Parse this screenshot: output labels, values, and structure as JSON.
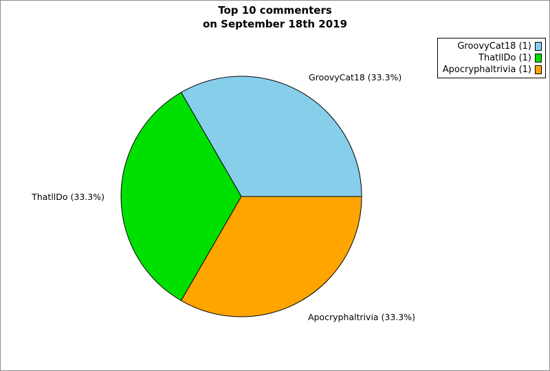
{
  "figure": {
    "title_line1": "Top 10 commenters",
    "title_line2": "on September 18th 2019"
  },
  "chart_data": {
    "type": "pie",
    "title": "Top 10 commenters\non September 18th 2019",
    "legend_position": "upper right",
    "start_angle_deg": 0,
    "direction": "counterclockwise",
    "edge_color": "#000000",
    "background_color": "#ffffff",
    "slices": [
      {
        "label": "GroovyCat18",
        "value": 1,
        "percent": 33.3,
        "slice_label": "GroovyCat18 (33.3%)",
        "legend_label": "GroovyCat18 (1)",
        "color": "#87CEEB"
      },
      {
        "label": "ThatllDo",
        "value": 1,
        "percent": 33.3,
        "slice_label": "ThatllDo (33.3%)",
        "legend_label": "ThatllDo (1)",
        "color": "#00E000"
      },
      {
        "label": "Apocryphaltrivia",
        "value": 1,
        "percent": 33.3,
        "slice_label": "Apocryphaltrivia (33.3%)",
        "legend_label": "Apocryphaltrivia (1)",
        "color": "#FFA500"
      }
    ]
  }
}
